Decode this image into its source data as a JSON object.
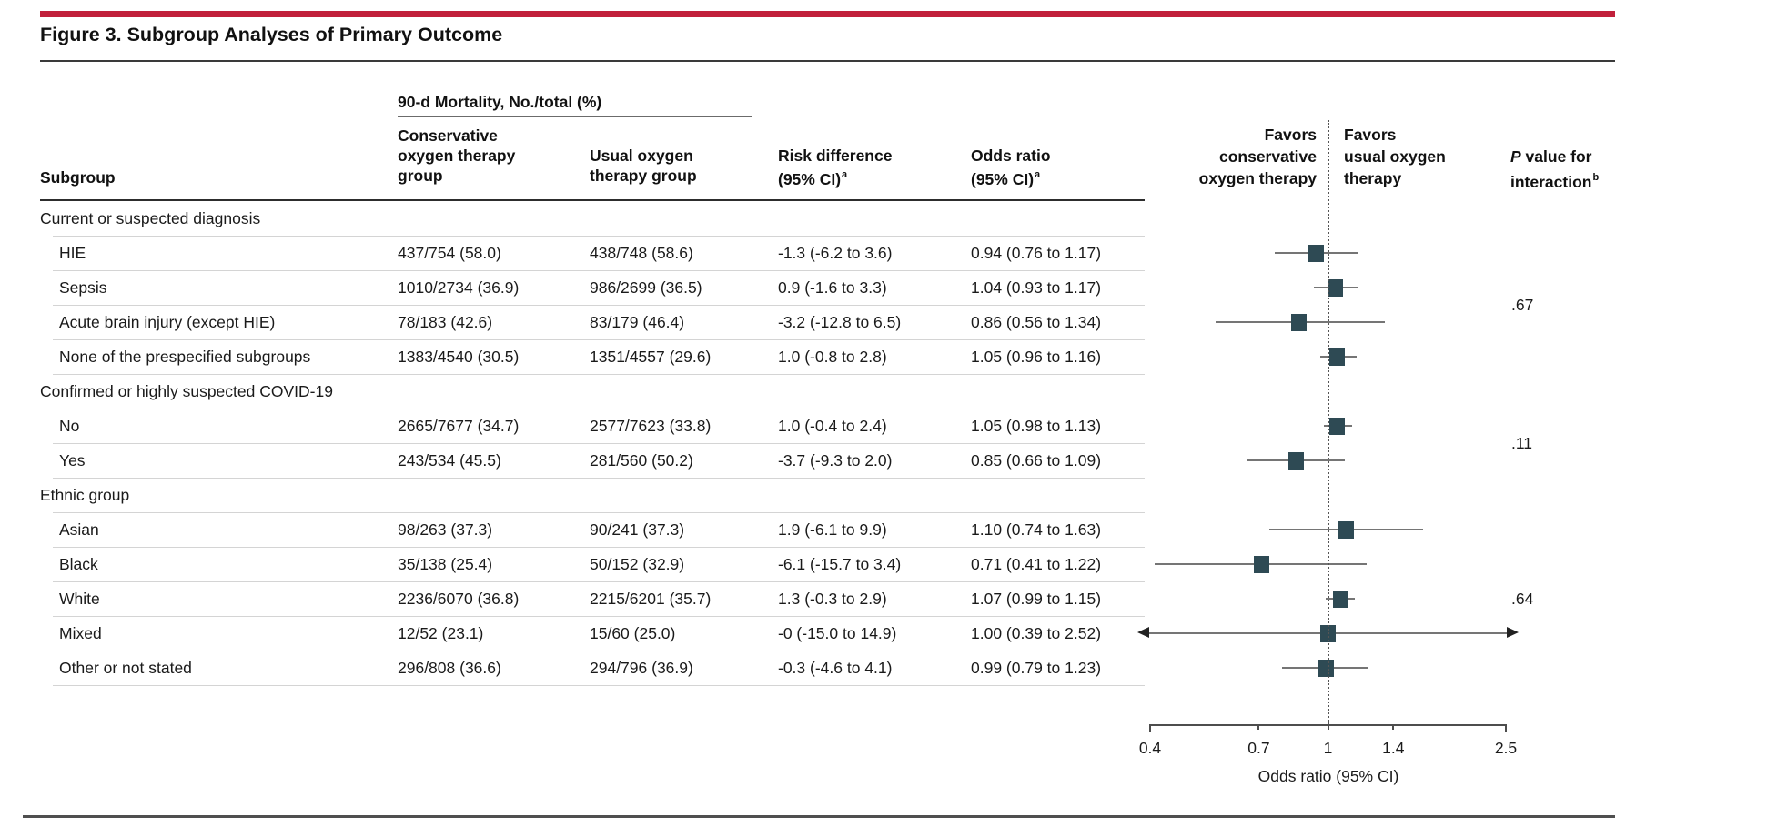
{
  "figure": {
    "title": "Figure 3. Subgroup Analyses of Primary Outcome",
    "accent_color": "#c1203b",
    "marker_color": "#2e4a54"
  },
  "columns": {
    "spanner": "90-d Mortality, No./total (%)",
    "subgroup": "Subgroup",
    "conservative": [
      "Conservative",
      "oxygen therapy",
      "group"
    ],
    "usual": [
      "Usual oxygen",
      "therapy group"
    ],
    "risk": {
      "line1": "Risk difference",
      "line2": "(95% CI)",
      "sup": "a"
    },
    "odds": {
      "line1": "Odds ratio",
      "line2": "(95% CI)",
      "sup": "a"
    },
    "favors_left": [
      "Favors",
      "conservative",
      "oxygen therapy"
    ],
    "favors_right": [
      "Favors",
      "usual oxygen",
      "therapy"
    ],
    "p_header": {
      "p": "P",
      "rest": " value for",
      "line2": "interaction",
      "sup": "b"
    }
  },
  "sections": [
    {
      "header": "Current or suspected diagnosis",
      "p_value": ".67",
      "rows": [
        {
          "subgroup": "HIE",
          "conservative": "437/754 (58.0)",
          "usual": "438/748 (58.6)",
          "risk_diff": "-1.3 (-6.2 to 3.6)",
          "odds_ratio": "0.94 (0.76 to 1.17)"
        },
        {
          "subgroup": "Sepsis",
          "conservative": "1010/2734 (36.9)",
          "usual": "986/2699 (36.5)",
          "risk_diff": "0.9 (-1.6 to 3.3)",
          "odds_ratio": "1.04 (0.93 to 1.17)"
        },
        {
          "subgroup": "Acute brain injury (except HIE)",
          "conservative": "78/183 (42.6)",
          "usual": "83/179 (46.4)",
          "risk_diff": "-3.2 (-12.8 to 6.5)",
          "odds_ratio": "0.86 (0.56 to 1.34)"
        },
        {
          "subgroup": "None of the prespecified subgroups",
          "conservative": "1383/4540 (30.5)",
          "usual": "1351/4557 (29.6)",
          "risk_diff": "1.0 (-0.8 to 2.8)",
          "odds_ratio": "1.05 (0.96 to 1.16)"
        }
      ]
    },
    {
      "header": "Confirmed or highly suspected COVID-19",
      "p_value": ".11",
      "rows": [
        {
          "subgroup": "No",
          "conservative": "2665/7677 (34.7)",
          "usual": "2577/7623 (33.8)",
          "risk_diff": "1.0 (-0.4 to 2.4)",
          "odds_ratio": "1.05 (0.98 to 1.13)"
        },
        {
          "subgroup": "Yes",
          "conservative": "243/534 (45.5)",
          "usual": "281/560 (50.2)",
          "risk_diff": "-3.7 (-9.3 to 2.0)",
          "odds_ratio": "0.85 (0.66 to 1.09)"
        }
      ]
    },
    {
      "header": "Ethnic group",
      "p_value": ".64",
      "rows": [
        {
          "subgroup": "Asian",
          "conservative": "98/263 (37.3)",
          "usual": "90/241 (37.3)",
          "risk_diff": "1.9 (-6.1 to 9.9)",
          "odds_ratio": "1.10 (0.74 to 1.63)"
        },
        {
          "subgroup": "Black",
          "conservative": "35/138 (25.4)",
          "usual": "50/152 (32.9)",
          "risk_diff": "-6.1 (-15.7 to 3.4)",
          "odds_ratio": "0.71 (0.41 to 1.22)"
        },
        {
          "subgroup": "White",
          "conservative": "2236/6070 (36.8)",
          "usual": "2215/6201 (35.7)",
          "risk_diff": "1.3 (-0.3 to 2.9)",
          "odds_ratio": "1.07 (0.99 to 1.15)"
        },
        {
          "subgroup": "Mixed",
          "conservative": "12/52 (23.1)",
          "usual": "15/60 (25.0)",
          "risk_diff": "-0 (-15.0 to 14.9)",
          "odds_ratio": "1.00 (0.39 to 2.52)"
        },
        {
          "subgroup": "Other or not stated",
          "conservative": "296/808 (36.6)",
          "usual": "294/796 (36.9)",
          "risk_diff": "-0.3 (-4.6 to 4.1)",
          "odds_ratio": "0.99 (0.79 to 1.23)"
        }
      ]
    }
  ],
  "chart_data": {
    "type": "scatter",
    "subtype": "forest-plot",
    "xlabel": "Odds ratio (95% CI)",
    "x_scale": "log",
    "xlim": [
      0.4,
      2.5
    ],
    "x_ticks": [
      0.4,
      0.7,
      1,
      1.4,
      2.5
    ],
    "reference_line": 1,
    "legend_left": "Favors conservative oxygen therapy",
    "legend_right": "Favors usual oxygen therapy",
    "rows": [
      {
        "label": "HIE",
        "or": 0.94,
        "lo": 0.76,
        "hi": 1.17
      },
      {
        "label": "Sepsis",
        "or": 1.04,
        "lo": 0.93,
        "hi": 1.17
      },
      {
        "label": "Acute brain injury (except HIE)",
        "or": 0.86,
        "lo": 0.56,
        "hi": 1.34
      },
      {
        "label": "None of the prespecified subgroups",
        "or": 1.05,
        "lo": 0.96,
        "hi": 1.16
      },
      {
        "label": "No",
        "or": 1.05,
        "lo": 0.98,
        "hi": 1.13
      },
      {
        "label": "Yes",
        "or": 0.85,
        "lo": 0.66,
        "hi": 1.09
      },
      {
        "label": "Asian",
        "or": 1.1,
        "lo": 0.74,
        "hi": 1.63
      },
      {
        "label": "Black",
        "or": 0.71,
        "lo": 0.41,
        "hi": 1.22
      },
      {
        "label": "White",
        "or": 1.07,
        "lo": 0.99,
        "hi": 1.15
      },
      {
        "label": "Mixed",
        "or": 1.0,
        "lo": 0.39,
        "hi": 2.52
      },
      {
        "label": "Other or not stated",
        "or": 0.99,
        "lo": 0.79,
        "hi": 1.23
      }
    ],
    "p_values_interaction": [
      ".67",
      ".11",
      ".64"
    ]
  }
}
